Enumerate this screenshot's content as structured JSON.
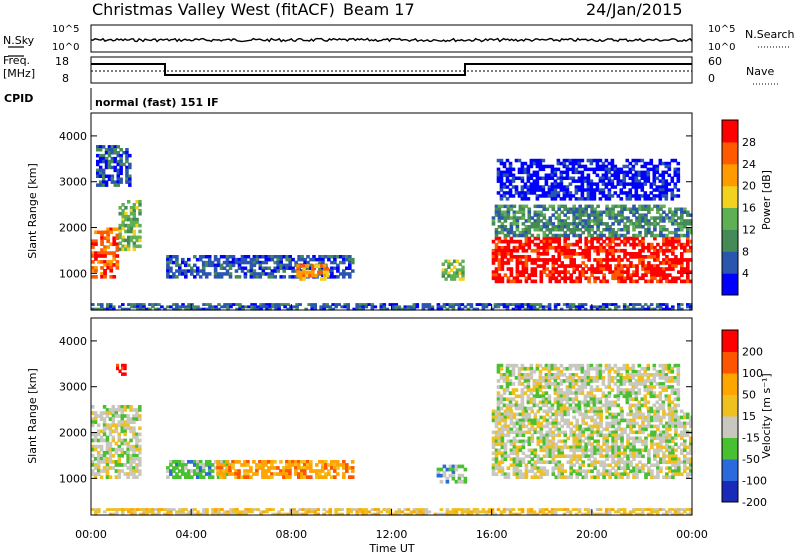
{
  "header": {
    "station": "Christmas Valley West (fitACF)",
    "beam": "Beam 17",
    "date": "24/Jan/2015"
  },
  "top_panels": {
    "nsky_label": "N.Sky",
    "nsky_tick_top": "10^5",
    "nsky_tick_bottom": "10^0",
    "nsearch_label": "N.Search",
    "nsearch_tick_top": "10^5",
    "nsearch_tick_bottom": "10^0",
    "freq_label_1": "Freq.",
    "freq_label_2": "[MHz]",
    "freq_tick_top": "18",
    "freq_tick_bottom": "8",
    "nave_label": "Nave",
    "nave_tick_top": "60",
    "nave_tick_bottom": "0",
    "cpid_label": "CPID",
    "cpid_text": "normal (fast) 151 IF"
  },
  "colors": {
    "power_scale": [
      "#0000ff",
      "#2b56b0",
      "#468a58",
      "#5faf55",
      "#f2d21e",
      "#ff9a00",
      "#ff5a00",
      "#ff0000"
    ],
    "velocity_scale": [
      "#ff0000",
      "#ff5500",
      "#ffa500",
      "#f0c020",
      "#c8c8c0",
      "#48c030",
      "#2a6adc",
      "#1a2ab8"
    ],
    "ground_gray": "#c8c8c0"
  },
  "chart_data": [
    {
      "type": "heatmap",
      "name": "power",
      "ylabel": "Slant Range [km]",
      "y_ticks": [
        "1000",
        "2000",
        "3000",
        "4000"
      ],
      "ylim": [
        200,
        4500
      ],
      "colorbar_label": "Power [dB]",
      "colorbar_ticks": [
        "4",
        "8",
        "12",
        "16",
        "20",
        "24",
        "28"
      ],
      "bands": [
        {
          "t0": 0.0,
          "t1": 1.1,
          "r0": 900,
          "r1": 2000,
          "level": 6
        },
        {
          "t0": 1.1,
          "t1": 2.0,
          "r0": 1500,
          "r1": 2600,
          "level": 3
        },
        {
          "t0": 0.2,
          "t1": 1.6,
          "r0": 2900,
          "r1": 3800,
          "level": 1
        },
        {
          "t0": 3.0,
          "t1": 10.5,
          "r0": 900,
          "r1": 1400,
          "level": 1
        },
        {
          "t0": 8.2,
          "t1": 9.5,
          "r0": 850,
          "r1": 1200,
          "level": 5
        },
        {
          "t0": 14.0,
          "t1": 14.9,
          "r0": 850,
          "r1": 1300,
          "level": 3
        },
        {
          "t0": 16.0,
          "t1": 24.0,
          "r0": 800,
          "r1": 1800,
          "level": 7
        },
        {
          "t0": 16.0,
          "t1": 24.0,
          "r0": 1800,
          "r1": 2500,
          "level": 2
        },
        {
          "t0": 16.2,
          "t1": 23.5,
          "r0": 2600,
          "r1": 3500,
          "level": 0
        },
        {
          "t0": 0.0,
          "t1": 24.0,
          "r0": 200,
          "r1": 350,
          "level": 1
        }
      ]
    },
    {
      "type": "heatmap",
      "name": "velocity",
      "ylabel": "Slant Range [km]",
      "y_ticks": [
        "1000",
        "2000",
        "3000",
        "4000"
      ],
      "ylim": [
        200,
        4500
      ],
      "colorbar_label": "Velocity [m s⁻¹]",
      "colorbar_ticks": [
        "200",
        "100",
        "50",
        "15",
        "-15",
        "-50",
        "-100",
        "-200"
      ],
      "bands": [
        {
          "t0": 0.0,
          "t1": 2.0,
          "r0": 1000,
          "r1": 2600,
          "level": 4
        },
        {
          "t0": 1.0,
          "t1": 1.4,
          "r0": 3250,
          "r1": 3500,
          "level": 0
        },
        {
          "t0": 3.0,
          "t1": 5.5,
          "r0": 1000,
          "r1": 1400,
          "level": 5
        },
        {
          "t0": 5.0,
          "t1": 10.5,
          "r0": 1000,
          "r1": 1400,
          "level": 2
        },
        {
          "t0": 13.8,
          "t1": 15.0,
          "r0": 900,
          "r1": 1300,
          "level": 5
        },
        {
          "t0": 16.0,
          "t1": 24.0,
          "r0": 1000,
          "r1": 2500,
          "level": 4
        },
        {
          "t0": 16.2,
          "t1": 23.5,
          "r0": 2500,
          "r1": 3500,
          "level": 4
        },
        {
          "t0": 0.0,
          "t1": 24.0,
          "r0": 200,
          "r1": 350,
          "level": 3
        }
      ]
    }
  ],
  "x_axis": {
    "label": "Time UT",
    "ticks": [
      "00:00",
      "04:00",
      "08:00",
      "12:00",
      "16:00",
      "20:00",
      "00:00"
    ],
    "range_hours": [
      0,
      24
    ]
  }
}
